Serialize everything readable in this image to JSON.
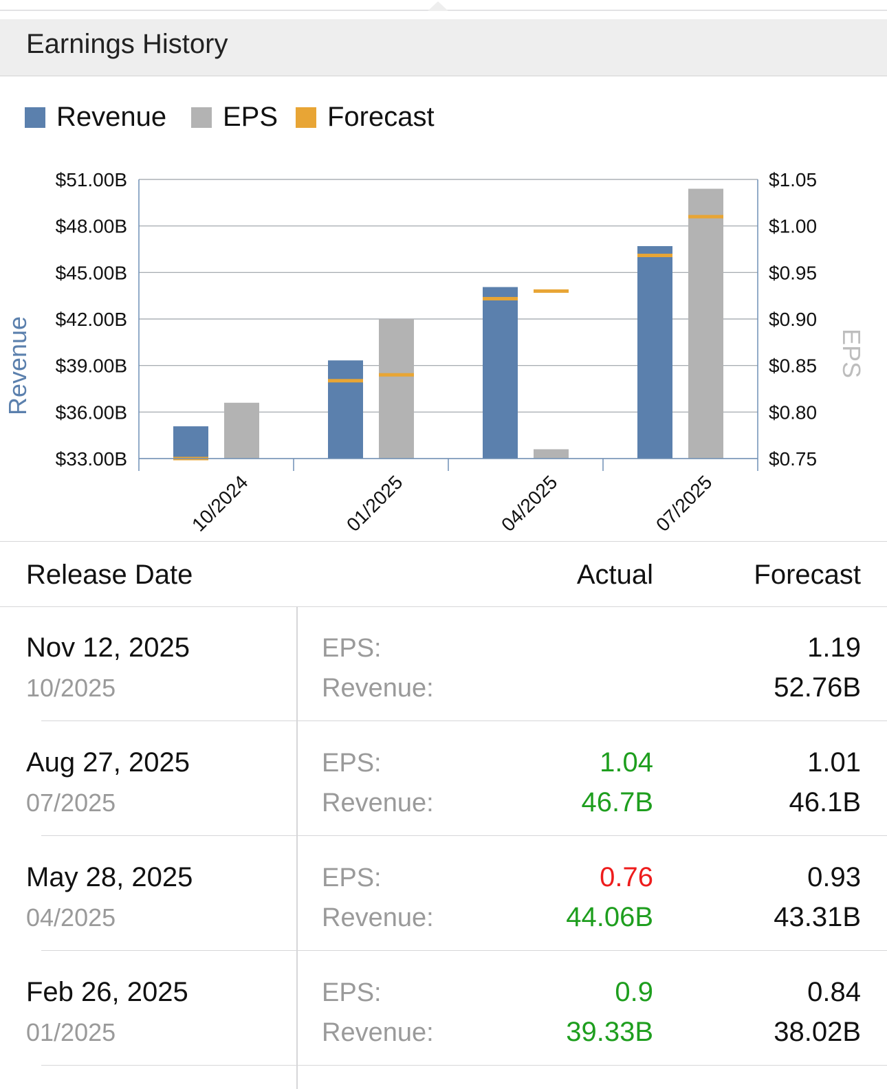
{
  "header": {
    "title": "Earnings History"
  },
  "legend": [
    {
      "label": "Revenue",
      "color": "#5b80ad"
    },
    {
      "label": "EPS",
      "color": "#b3b3b3"
    },
    {
      "label": "Forecast",
      "color": "#e8a535"
    }
  ],
  "chart_data": {
    "type": "bar",
    "categories": [
      "10/2024",
      "01/2025",
      "04/2025",
      "07/2025"
    ],
    "series": [
      {
        "name": "Revenue",
        "axis": "left",
        "values": [
          35.08,
          39.33,
          44.06,
          46.7
        ],
        "color": "#5b80ad"
      },
      {
        "name": "EPS",
        "axis": "right",
        "values": [
          0.81,
          0.9,
          0.76,
          1.04
        ],
        "color": "#b3b3b3"
      }
    ],
    "forecast": {
      "name": "Forecast",
      "color": "#e8a535",
      "revenue": [
        33.0,
        38.02,
        43.31,
        46.1
      ],
      "eps": [
        null,
        0.84,
        0.93,
        1.01
      ]
    },
    "ylabel": "Revenue",
    "y2label": "EPS",
    "ylim": [
      33,
      51
    ],
    "y2lim": [
      0.75,
      1.05
    ],
    "yticks": [
      "$33.00B",
      "$36.00B",
      "$39.00B",
      "$42.00B",
      "$45.00B",
      "$48.00B",
      "$51.00B"
    ],
    "y2ticks": [
      "$0.75",
      "$0.80",
      "$0.85",
      "$0.90",
      "$0.95",
      "$1.00",
      "$1.05"
    ],
    "grid": true,
    "legend_position": "top-left"
  },
  "table": {
    "headers": {
      "date": "Release Date",
      "actual": "Actual",
      "forecast": "Forecast"
    },
    "eps_label": "EPS:",
    "revenue_label": "Revenue:",
    "rows": [
      {
        "date": "Nov 12, 2025",
        "period": "10/2025",
        "eps_actual": "",
        "eps_actual_color": "#111111",
        "rev_actual": "",
        "rev_actual_color": "#111111",
        "eps_forecast": "1.19",
        "rev_forecast": "52.76B"
      },
      {
        "date": "Aug 27, 2025",
        "period": "07/2025",
        "eps_actual": "1.04",
        "eps_actual_color": "#1e9e1e",
        "rev_actual": "46.7B",
        "rev_actual_color": "#1e9e1e",
        "eps_forecast": "1.01",
        "rev_forecast": "46.1B"
      },
      {
        "date": "May 28, 2025",
        "period": "04/2025",
        "eps_actual": "0.76",
        "eps_actual_color": "#ee1c1c",
        "rev_actual": "44.06B",
        "rev_actual_color": "#1e9e1e",
        "eps_forecast": "0.93",
        "rev_forecast": "43.31B"
      },
      {
        "date": "Feb 26, 2025",
        "period": "01/2025",
        "eps_actual": "0.9",
        "eps_actual_color": "#1e9e1e",
        "rev_actual": "39.33B",
        "rev_actual_color": "#1e9e1e",
        "eps_forecast": "0.84",
        "rev_forecast": "38.02B"
      }
    ]
  }
}
